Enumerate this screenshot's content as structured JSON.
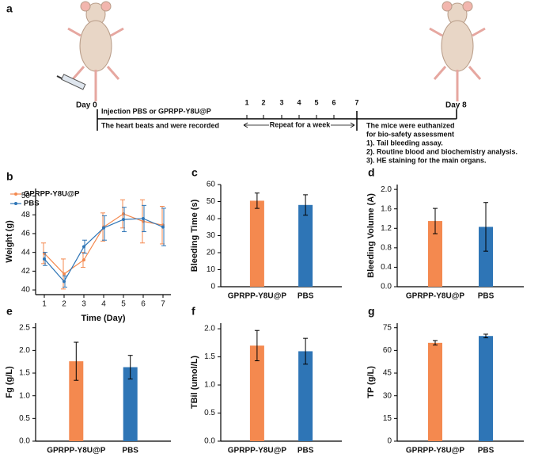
{
  "timeline": {
    "panel_label": "a",
    "start": "Day 0",
    "end": "Day 8",
    "step_top": "Injection PBS or GPRPP-Y8U@P",
    "step_bottom": "The heart beats and were recorded",
    "days": [
      "1",
      "2",
      "3",
      "4",
      "5",
      "6",
      "7"
    ],
    "repeat": "Repeat for a week",
    "final": [
      "The mice were euthanized",
      "for bio-safety assessment",
      "1). Tail bleeding assay.",
      "2). Routine blood and biochemistry analysis.",
      "3). HE staining for the main organs."
    ]
  },
  "chart_data": [
    {
      "type": "line",
      "panel_label": "b",
      "xlabel": "Time (Day)",
      "ylabel": "Weight (g)",
      "x": [
        1,
        2,
        3,
        4,
        5,
        6,
        7
      ],
      "xlim": [
        0.56,
        7.4
      ],
      "xticks": [
        1,
        2,
        3,
        4,
        5,
        6,
        7
      ],
      "ylim": [
        39.5,
        50.8
      ],
      "yticks": [
        40,
        42,
        44,
        46,
        48,
        50
      ],
      "legend": "upper left",
      "series": [
        {
          "name": "GPRPP-Y8U@P",
          "color": "#f4894f",
          "values": [
            43.9,
            41.7,
            43.2,
            46.7,
            48.1,
            47.3,
            46.9
          ],
          "errors": [
            1.1,
            1.6,
            0.8,
            1.5,
            1.5,
            2.3,
            2.0
          ]
        },
        {
          "name": "PBS",
          "color": "#2e75b6",
          "values": [
            43.3,
            40.9,
            44.6,
            46.6,
            47.5,
            47.6,
            46.7
          ],
          "errors": [
            0.7,
            0.6,
            0.7,
            1.3,
            1.3,
            1.4,
            2.0
          ]
        }
      ]
    },
    {
      "type": "bar",
      "panel_label": "c",
      "ylabel": "Bleeding Time (s)",
      "categories": [
        "GPRPP-Y8U@P",
        "PBS"
      ],
      "values": [
        50.5,
        48
      ],
      "errors": [
        4.5,
        6
      ],
      "colors": [
        "#f4894f",
        "#2e75b6"
      ],
      "ylim": [
        0,
        60
      ],
      "yticks": [
        0,
        10,
        20,
        30,
        40,
        50,
        60
      ]
    },
    {
      "type": "bar",
      "panel_label": "d",
      "ylabel": "Bleeding Volume (A)",
      "categories": [
        "GPRPP-Y8U@P",
        "PBS"
      ],
      "values": [
        1.35,
        1.23
      ],
      "errors": [
        0.26,
        0.5
      ],
      "colors": [
        "#f4894f",
        "#2e75b6"
      ],
      "ylim": [
        0,
        2.1
      ],
      "yticks": [
        {
          "value": 0,
          "label": "0.0"
        },
        0.4,
        0.8,
        1.2,
        1.6,
        {
          "value": 2,
          "label": "2.0"
        }
      ]
    },
    {
      "type": "bar",
      "panel_label": "e",
      "ylabel": "Fg (g/L)",
      "categories": [
        "GPRPP-Y8U@P",
        "PBS"
      ],
      "values": [
        1.76,
        1.63
      ],
      "errors": [
        0.42,
        0.26
      ],
      "colors": [
        "#f4894f",
        "#2e75b6"
      ],
      "ylim": [
        0,
        2.6
      ],
      "yticks": [
        {
          "value": 0,
          "label": "0.0"
        },
        0.5,
        {
          "value": 1,
          "label": "1.0"
        },
        1.5,
        {
          "value": 2,
          "label": "2.0"
        },
        2.5
      ]
    },
    {
      "type": "bar",
      "panel_label": "f",
      "ylabel": "TBil (umol/L)",
      "categories": [
        "GPRPP-Y8U@P",
        "PBS"
      ],
      "values": [
        1.7,
        1.6
      ],
      "errors": [
        0.27,
        0.23
      ],
      "colors": [
        "#f4894f",
        "#2e75b6"
      ],
      "ylim": [
        0,
        2.1
      ],
      "yticks": [
        {
          "value": 0,
          "label": "0.0"
        },
        0.5,
        {
          "value": 1,
          "label": "1.0"
        },
        1.5,
        {
          "value": 2,
          "label": "2.0"
        }
      ]
    },
    {
      "type": "bar",
      "panel_label": "g",
      "ylabel": "TP (g/L)",
      "categories": [
        "GPRPP-Y8U@P",
        "PBS"
      ],
      "values": [
        65,
        69.5
      ],
      "errors": [
        1.5,
        1.2
      ],
      "colors": [
        "#f4894f",
        "#2e75b6"
      ],
      "ylim": [
        0,
        78
      ],
      "yticks": [
        0,
        15,
        30,
        45,
        60,
        75
      ]
    }
  ]
}
